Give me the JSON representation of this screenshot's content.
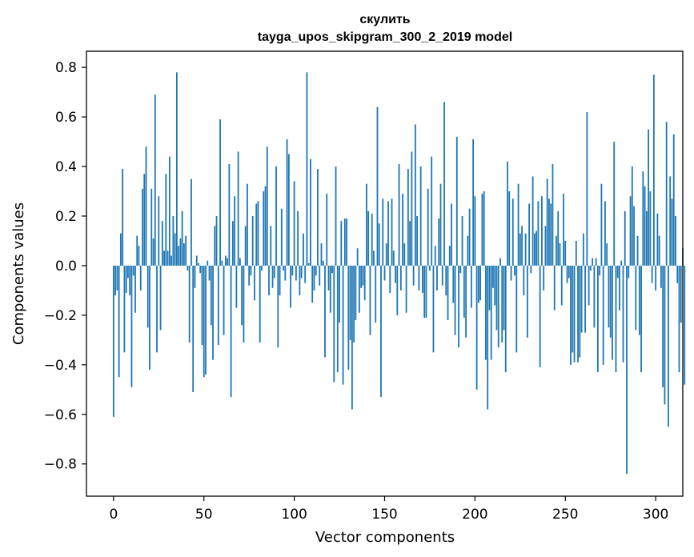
{
  "chart_data": {
    "type": "bar",
    "title": "скулить",
    "subtitle": "tayga_upos_skipgram_300_2_2019 model",
    "xlabel": "Vector components",
    "ylabel": "Components values",
    "xlim": [
      -15,
      315
    ],
    "ylim": [
      -0.93,
      0.865
    ],
    "x_ticks": [
      0,
      50,
      100,
      150,
      200,
      250,
      300
    ],
    "x_tick_labels": [
      "0",
      "50",
      "100",
      "150",
      "200",
      "250",
      "300"
    ],
    "y_ticks": [
      0.8,
      0.6,
      0.4,
      0.2,
      0.0,
      -0.2,
      -0.4,
      -0.6,
      -0.8
    ],
    "y_tick_labels": [
      "0.8",
      "0.6",
      "0.4",
      "0.2",
      "0.0",
      "−0.2",
      "−0.4",
      "−0.6",
      "−0.8"
    ],
    "bar_color": "#1f77b4",
    "values": [
      -0.61,
      -0.12,
      -0.1,
      -0.45,
      0.13,
      0.39,
      -0.35,
      -0.11,
      -0.05,
      -0.12,
      -0.49,
      -0.04,
      -0.19,
      0.12,
      0.08,
      -0.1,
      0.31,
      0.37,
      0.48,
      -0.25,
      -0.42,
      0.31,
      0.11,
      0.69,
      -0.35,
      0.28,
      -0.26,
      0.18,
      0.06,
      0.37,
      0.06,
      0.44,
      0.04,
      0.2,
      0.13,
      0.78,
      0.08,
      0.11,
      0.22,
      0.09,
      0.12,
      -0.02,
      -0.31,
      0.35,
      -0.51,
      -0.09,
      0.04,
      0.01,
      -0.03,
      -0.32,
      -0.45,
      -0.44,
      0.02,
      -0.06,
      -0.24,
      -0.38,
      0.16,
      0.2,
      -0.32,
      0.59,
      0.02,
      -0.28,
      0.04,
      0.03,
      0.41,
      -0.53,
      0.18,
      0.28,
      -0.17,
      0.46,
      0.03,
      -0.24,
      -0.31,
      0.16,
      0.33,
      -0.08,
      -0.04,
      0.2,
      -0.14,
      0.25,
      0.26,
      -0.31,
      -0.02,
      0.3,
      0.32,
      0.48,
      -0.12,
      0.16,
      -0.09,
      -0.05,
      0.4,
      -0.33,
      -0.12,
      0.23,
      -0.02,
      -0.06,
      0.51,
      0.45,
      -0.17,
      -0.04,
      0.34,
      -0.06,
      0.22,
      -0.12,
      -0.05,
      0.13,
      -0.07,
      0.78,
      0.01,
      0.43,
      -0.15,
      -0.1,
      -0.04,
      0.39,
      -0.08,
      0.09,
      0.02,
      -0.37,
      0.29,
      -0.1,
      -0.19,
      -0.03,
      -0.47,
      0.4,
      -0.43,
      -0.23,
      0.18,
      -0.48,
      0.19,
      0.19,
      -0.42,
      -0.3,
      -0.58,
      -0.31,
      -0.22,
      0.07,
      -0.19,
      -0.09,
      -0.08,
      -0.14,
      0.33,
      0.22,
      -0.28,
      0.21,
      0.06,
      -0.23,
      0.64,
      0.17,
      -0.53,
      0.27,
      -0.06,
      0.09,
      0.26,
      -0.11,
      0.27,
      0.06,
      -0.07,
      -0.2,
      0.41,
      -0.1,
      0.29,
      0.09,
      -0.19,
      0.39,
      0.18,
      0.46,
      -0.08,
      0.57,
      0.2,
      -0.1,
      0.4,
      -0.11,
      -0.21,
      -0.21,
      0.31,
      -0.02,
      0.44,
      -0.35,
      0.08,
      -0.1,
      0.19,
      0.33,
      -0.08,
      0.66,
      -0.12,
      -0.22,
      0.08,
      0.25,
      -0.15,
      -0.28,
      0.52,
      -0.33,
      -0.03,
      0.2,
      -0.21,
      -0.29,
      0.12,
      0.23,
      -0.17,
      0.51,
      0.28,
      -0.5,
      -0.15,
      -0.14,
      0.29,
      0.3,
      -0.38,
      -0.58,
      -0.18,
      -0.38,
      -0.09,
      -0.16,
      -0.26,
      -0.33,
      0.03,
      -0.31,
      -0.26,
      -0.43,
      0.42,
      0.3,
      -0.06,
      0.27,
      -0.04,
      -0.35,
      0.33,
      0.13,
      0.16,
      -0.12,
      0.13,
      -0.29,
      0.25,
      -0.03,
      0.36,
      0.13,
      0.14,
      0.26,
      -0.41,
      0.28,
      -0.1,
      0.16,
      0.35,
      0.27,
      0.25,
      0.41,
      -0.18,
      0.12,
      0.22,
      0.09,
      -0.16,
      0.29,
      0.1,
      -0.07,
      -0.05,
      -0.4,
      -0.35,
      -0.39,
      0.1,
      -0.39,
      -0.37,
      -0.27,
      0.13,
      -0.27,
      0.62,
      -0.16,
      -0.02,
      0.03,
      -0.25,
      0.03,
      -0.43,
      -0.04,
      0.33,
      -0.4,
      0.26,
      0.09,
      -0.25,
      -0.29,
      -0.38,
      0.5,
      -0.43,
      -0.05,
      -0.18,
      0.02,
      -0.39,
      0.22,
      -0.84,
      -0.05,
      0.28,
      0.4,
      0.24,
      -0.26,
      0.12,
      -0.28,
      -0.43,
      0.38,
      0.32,
      0.22,
      0.55,
      0.3,
      -0.07,
      0.77,
      -0.1,
      0.21,
      0.12,
      -0.09,
      -0.49,
      -0.56,
      0.58,
      -0.65,
      0.36,
      0.27,
      0.53,
      0.2,
      -0.07,
      -0.43,
      -0.23,
      0.07,
      -0.48
    ]
  }
}
